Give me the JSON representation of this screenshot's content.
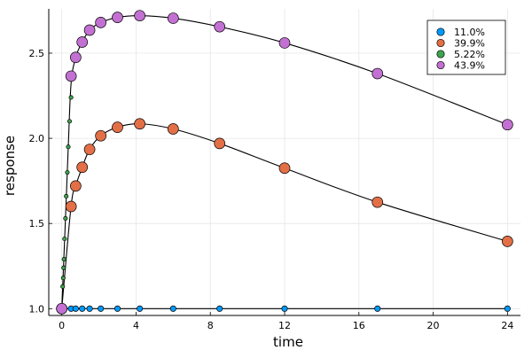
{
  "chart_data": {
    "type": "scatter",
    "title": "",
    "xlabel": "time",
    "ylabel": "response",
    "xlim": [
      -0.7,
      24.7
    ],
    "ylim": [
      0.96,
      2.76
    ],
    "xticks": [
      0,
      4,
      8,
      12,
      16,
      20,
      24
    ],
    "xtick_labels": [
      "0",
      "4",
      "8",
      "12",
      "16",
      "20",
      "24"
    ],
    "yticks": [
      1.0,
      1.5,
      2.0,
      2.5
    ],
    "ytick_labels": [
      "1.0",
      "1.5",
      "2.0",
      "2.5"
    ],
    "grid": true,
    "legend_position": "top-right",
    "series": [
      {
        "name": "11.0%",
        "color": "#009AFA",
        "marker_size": "medium",
        "points": [
          {
            "x": 0,
            "y": 1.0
          },
          {
            "x": 0.5,
            "y": 1.0
          },
          {
            "x": 0.75,
            "y": 1.0
          },
          {
            "x": 1.1,
            "y": 1.0
          },
          {
            "x": 1.5,
            "y": 1.0
          },
          {
            "x": 2.1,
            "y": 1.0
          },
          {
            "x": 3.0,
            "y": 1.0
          },
          {
            "x": 4.2,
            "y": 1.0
          },
          {
            "x": 6.0,
            "y": 1.0
          },
          {
            "x": 8.5,
            "y": 1.0
          },
          {
            "x": 12.0,
            "y": 1.0
          },
          {
            "x": 17.0,
            "y": 1.0
          },
          {
            "x": 24.0,
            "y": 1.0
          }
        ]
      },
      {
        "name": "39.9%",
        "color": "#E36F47",
        "marker_size": "large",
        "points": [
          {
            "x": 0,
            "y": 1.0
          },
          {
            "x": 0.5,
            "y": 1.6
          },
          {
            "x": 0.75,
            "y": 1.72
          },
          {
            "x": 1.1,
            "y": 1.83
          },
          {
            "x": 1.5,
            "y": 1.935
          },
          {
            "x": 2.1,
            "y": 2.015
          },
          {
            "x": 3.0,
            "y": 2.065
          },
          {
            "x": 4.2,
            "y": 2.085
          },
          {
            "x": 6.0,
            "y": 2.055
          },
          {
            "x": 8.5,
            "y": 1.97
          },
          {
            "x": 12.0,
            "y": 1.825
          },
          {
            "x": 17.0,
            "y": 1.625
          },
          {
            "x": 24.0,
            "y": 1.395
          }
        ]
      },
      {
        "name": "5.22%",
        "color": "#3EA44E",
        "marker_size": "small",
        "points": [
          {
            "x": 0,
            "y": 1.0
          },
          {
            "x": 0.05,
            "y": 1.13
          },
          {
            "x": 0.08,
            "y": 1.18
          },
          {
            "x": 0.1,
            "y": 1.24
          },
          {
            "x": 0.12,
            "y": 1.29
          },
          {
            "x": 0.15,
            "y": 1.41
          },
          {
            "x": 0.2,
            "y": 1.53
          },
          {
            "x": 0.24,
            "y": 1.66
          },
          {
            "x": 0.3,
            "y": 1.8
          },
          {
            "x": 0.35,
            "y": 1.95
          },
          {
            "x": 0.42,
            "y": 2.1
          },
          {
            "x": 0.5,
            "y": 2.24
          }
        ]
      },
      {
        "name": "43.9%",
        "color": "#C271D2",
        "marker_size": "large",
        "points": [
          {
            "x": 0,
            "y": 1.0
          },
          {
            "x": 0.5,
            "y": 2.365
          },
          {
            "x": 0.75,
            "y": 2.475
          },
          {
            "x": 1.1,
            "y": 2.565
          },
          {
            "x": 1.5,
            "y": 2.635
          },
          {
            "x": 2.1,
            "y": 2.68
          },
          {
            "x": 3.0,
            "y": 2.71
          },
          {
            "x": 4.2,
            "y": 2.72
          },
          {
            "x": 6.0,
            "y": 2.705
          },
          {
            "x": 8.5,
            "y": 2.655
          },
          {
            "x": 12.0,
            "y": 2.56
          },
          {
            "x": 17.0,
            "y": 2.38
          },
          {
            "x": 24.0,
            "y": 2.08
          }
        ]
      }
    ],
    "fitted_curves": [
      {
        "shape": "rise-then-decay",
        "peak_at_time": 4.2,
        "values": [
          {
            "x": 0,
            "y": 1.0
          },
          {
            "x": 0.5,
            "y": 1.6
          },
          {
            "x": 0.75,
            "y": 1.72
          },
          {
            "x": 1.1,
            "y": 1.83
          },
          {
            "x": 1.5,
            "y": 1.935
          },
          {
            "x": 2.1,
            "y": 2.015
          },
          {
            "x": 3.0,
            "y": 2.065
          },
          {
            "x": 4.2,
            "y": 2.085
          },
          {
            "x": 6.0,
            "y": 2.055
          },
          {
            "x": 8.5,
            "y": 1.97
          },
          {
            "x": 12.0,
            "y": 1.825
          },
          {
            "x": 17.0,
            "y": 1.625
          },
          {
            "x": 24.0,
            "y": 1.395
          }
        ]
      },
      {
        "shape": "rise-then-decay",
        "peak_at_time": 4.2,
        "values": [
          {
            "x": 0,
            "y": 1.0
          },
          {
            "x": 0.2,
            "y": 1.53
          },
          {
            "x": 0.35,
            "y": 1.95
          },
          {
            "x": 0.5,
            "y": 2.32
          },
          {
            "x": 0.75,
            "y": 2.475
          },
          {
            "x": 1.1,
            "y": 2.565
          },
          {
            "x": 1.5,
            "y": 2.635
          },
          {
            "x": 2.1,
            "y": 2.68
          },
          {
            "x": 3.0,
            "y": 2.71
          },
          {
            "x": 4.2,
            "y": 2.72
          },
          {
            "x": 6.0,
            "y": 2.705
          },
          {
            "x": 8.5,
            "y": 2.655
          },
          {
            "x": 12.0,
            "y": 2.56
          },
          {
            "x": 17.0,
            "y": 2.38
          },
          {
            "x": 24.0,
            "y": 2.08
          }
        ]
      },
      {
        "shape": "flat",
        "values": [
          {
            "x": 0,
            "y": 1.0
          },
          {
            "x": 24.0,
            "y": 1.0
          }
        ]
      }
    ]
  }
}
